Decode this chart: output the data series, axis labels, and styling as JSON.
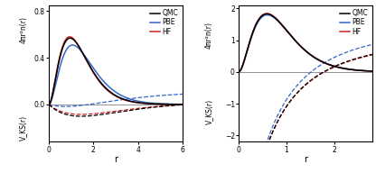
{
  "left": {
    "xlabel": "r",
    "ylabel_top": "4πr²n(r)",
    "ylabel_bot": "V_KS(r)",
    "xlim": [
      0,
      6.0
    ],
    "xticks": [
      0.0,
      2.0,
      4.0,
      6.0
    ],
    "ylim": [
      -0.32,
      0.85
    ],
    "yticks": [
      0.0,
      0.4,
      0.8
    ],
    "hline_y": 0.0,
    "colors": {
      "QMC": "#000000",
      "PBE": "#3366cc",
      "HF": "#cc2222"
    },
    "legend_labels": [
      "QMC",
      "PBE",
      "HF"
    ]
  },
  "right": {
    "xlabel": "r",
    "ylabel_top": "4πr²n(r)",
    "ylabel_bot": "V_KS(r)",
    "xlim": [
      0,
      2.8
    ],
    "xticks": [
      0.0,
      1.0,
      2.0
    ],
    "ylim": [
      -2.2,
      2.1
    ],
    "yticks": [
      -2.0,
      -1.0,
      0.0,
      1.0,
      2.0
    ],
    "hline_y": 0.0,
    "colors": {
      "QMC": "#000000",
      "PBE": "#3366cc",
      "HF": "#cc2222"
    },
    "legend_labels": [
      "QMC",
      "PBE",
      "HF"
    ]
  }
}
